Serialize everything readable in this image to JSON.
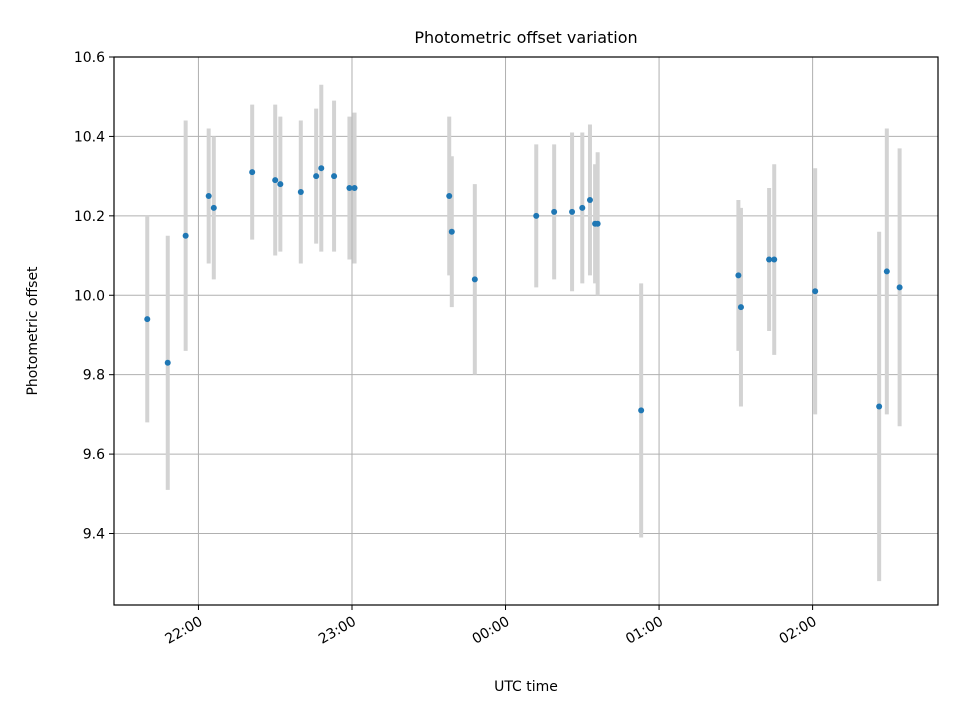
{
  "colors": {
    "background": "#ffffff",
    "point": "#1f77b4",
    "errorbar": "#d3d3d3",
    "grid": "#b0b0b0",
    "axis": "#000000"
  },
  "chart_data": {
    "type": "scatter",
    "title": "Photometric offset variation",
    "xlabel": "UTC time",
    "ylabel": "Photometric offset",
    "x_axis": "time",
    "xlim": [
      "21:27",
      "02:49"
    ],
    "ylim": [
      9.22,
      10.6
    ],
    "x_ticks": [
      "22:00",
      "23:00",
      "00:00",
      "01:00",
      "02:00"
    ],
    "y_ticks": [
      "9.4",
      "9.6",
      "9.8",
      "10.0",
      "10.2",
      "10.4",
      "10.6"
    ],
    "grid": true,
    "series": [
      {
        "marker": "point",
        "error_bars": true,
        "points": [
          {
            "t": "21:40",
            "y": 9.94,
            "err": 0.26
          },
          {
            "t": "21:48",
            "y": 9.83,
            "err": 0.32
          },
          {
            "t": "21:55",
            "y": 10.15,
            "err": 0.29
          },
          {
            "t": "22:04",
            "y": 10.25,
            "err": 0.17
          },
          {
            "t": "22:06",
            "y": 10.22,
            "err": 0.18
          },
          {
            "t": "22:21",
            "y": 10.31,
            "err": 0.17
          },
          {
            "t": "22:30",
            "y": 10.29,
            "err": 0.19
          },
          {
            "t": "22:32",
            "y": 10.28,
            "err": 0.17
          },
          {
            "t": "22:40",
            "y": 10.26,
            "err": 0.18
          },
          {
            "t": "22:46",
            "y": 10.3,
            "err": 0.17
          },
          {
            "t": "22:48",
            "y": 10.32,
            "err": 0.21
          },
          {
            "t": "22:53",
            "y": 10.3,
            "err": 0.19
          },
          {
            "t": "22:59",
            "y": 10.27,
            "err": 0.18
          },
          {
            "t": "23:01",
            "y": 10.27,
            "err": 0.19
          },
          {
            "t": "23:38",
            "y": 10.25,
            "err": 0.2
          },
          {
            "t": "23:39",
            "y": 10.16,
            "err": 0.19
          },
          {
            "t": "23:48",
            "y": 10.04,
            "err": 0.24
          },
          {
            "t": "00:12",
            "y": 10.2,
            "err": 0.18
          },
          {
            "t": "00:19",
            "y": 10.21,
            "err": 0.17
          },
          {
            "t": "00:26",
            "y": 10.21,
            "err": 0.2
          },
          {
            "t": "00:30",
            "y": 10.22,
            "err": 0.19
          },
          {
            "t": "00:33",
            "y": 10.24,
            "err": 0.19
          },
          {
            "t": "00:35",
            "y": 10.18,
            "err": 0.15
          },
          {
            "t": "00:36",
            "y": 10.18,
            "err": 0.18
          },
          {
            "t": "00:53",
            "y": 9.71,
            "err": 0.32
          },
          {
            "t": "01:31",
            "y": 10.05,
            "err": 0.19
          },
          {
            "t": "01:32",
            "y": 9.97,
            "err": 0.25
          },
          {
            "t": "01:43",
            "y": 10.09,
            "err": 0.18
          },
          {
            "t": "01:45",
            "y": 10.09,
            "err": 0.24
          },
          {
            "t": "02:01",
            "y": 10.01,
            "err": 0.31
          },
          {
            "t": "02:26",
            "y": 9.72,
            "err": 0.44
          },
          {
            "t": "02:29",
            "y": 10.06,
            "err": 0.36
          },
          {
            "t": "02:34",
            "y": 10.02,
            "err": 0.35
          }
        ]
      }
    ]
  }
}
